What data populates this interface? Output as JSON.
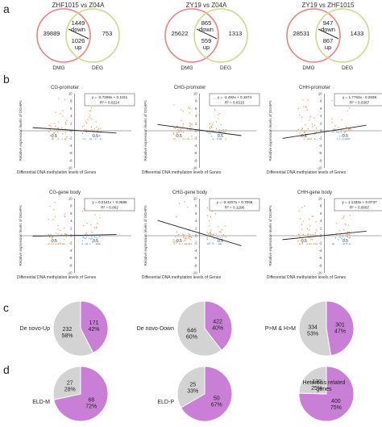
{
  "panels": {
    "a": "a",
    "b": "b",
    "c": "c",
    "d": "d"
  },
  "venn": [
    {
      "title": "ZHF1015 vs Z04A",
      "left_only": "39889",
      "overlap_down": "1449",
      "down_word": "down",
      "overlap_up": "1026",
      "up_word": "up",
      "right_only": "753",
      "left_label": "DMG",
      "right_label": "DEG"
    },
    {
      "title": "ZY19 vs Z04A",
      "left_only": "25622",
      "overlap_down": "865",
      "down_word": "down",
      "overlap_up": "559",
      "up_word": "up",
      "right_only": "1313",
      "left_label": "DMG",
      "right_label": "DEG"
    },
    {
      "title": "ZY19 vs ZHF1015",
      "left_only": "28531",
      "overlap_down": "947",
      "down_word": "down",
      "overlap_up": "867",
      "up_word": "up",
      "right_only": "1433",
      "left_label": "DMG",
      "right_label": "DEG"
    }
  ],
  "scatter": {
    "ylabel": "Relative expression levels of DGHPs",
    "xlabel": "Differential DNA methylation levels of Genes",
    "yticks": [
      "10",
      "9",
      "8",
      "7",
      "6",
      "5",
      "4",
      "3",
      "2",
      "1",
      "0",
      "-1",
      "-2",
      "-3",
      "-4",
      "-5",
      "-6",
      "-7",
      "-8",
      "-9",
      "-10"
    ],
    "xticks": [
      "-0.5",
      "0.5"
    ],
    "plots": [
      {
        "title": "CG-promoter",
        "equation": "y = -0.7269x + 0.1151",
        "r2": "R² = 0.0224",
        "slope": -0.7269,
        "intercept": 0.1151
      },
      {
        "title": "CHG-promoter",
        "equation": "y = -1.492x + 0.1874",
        "r2": "R² = 0.0315",
        "slope": -1.492,
        "intercept": 0.1874
      },
      {
        "title": "CHH-promoter",
        "equation": "y = 1.7763x - 0.2838",
        "r2": "R² = 0.0367",
        "slope": 1.7763,
        "intercept": -0.2838
      },
      {
        "title": "CG-gene body",
        "equation": "y = 0.2141x + 0.0886",
        "r2": "R² = 0.002",
        "slope": 0.2141,
        "intercept": 0.0886
      },
      {
        "title": "CHG-gene body",
        "equation": "y = -3.4207x + 0.7066",
        "r2": "R² = 0.1296",
        "slope": -3.4207,
        "intercept": 0.7066
      },
      {
        "title": "CHH-gene body",
        "equation": "y = 1.1333x + 0.0737",
        "r2": "R² = 0.0097",
        "slope": 1.1333,
        "intercept": 0.0737
      }
    ]
  },
  "chart_data": [
    {
      "type": "pie",
      "label": "De novo-Up",
      "values": [
        171,
        232
      ],
      "percent_labels": [
        "42%",
        "58%"
      ],
      "colors": [
        "#c97fd6",
        "#d3d3d3"
      ]
    },
    {
      "type": "pie",
      "label": "De novo-Down",
      "values": [
        422,
        646
      ],
      "percent_labels": [
        "40%",
        "60%"
      ],
      "colors": [
        "#c97fd6",
        "#d3d3d3"
      ]
    },
    {
      "type": "pie",
      "label": "P>M & H>M",
      "values": [
        301,
        334
      ],
      "percent_labels": [
        "47%",
        "53%"
      ],
      "colors": [
        "#c97fd6",
        "#d3d3d3"
      ]
    },
    {
      "type": "pie",
      "label": "ELD-M",
      "values": [
        68,
        27
      ],
      "percent_labels": [
        "72%",
        "28%"
      ],
      "colors": [
        "#c97fd6",
        "#d3d3d3"
      ]
    },
    {
      "type": "pie",
      "label": "ELD-P",
      "values": [
        50,
        25
      ],
      "percent_labels": [
        "67%",
        "33%"
      ],
      "colors": [
        "#c97fd6",
        "#d3d3d3"
      ]
    },
    {
      "type": "pie",
      "label": "Heterosis related genes",
      "values": [
        400,
        130
      ],
      "percent_labels": [
        "75%",
        "25%"
      ],
      "colors": [
        "#c97fd6",
        "#d3d3d3"
      ]
    }
  ],
  "colors": {
    "dmg_circle": "#f08080",
    "deg_circle": "#cfd98a",
    "up_points": "#f4a46a",
    "down_points": "#8ab4de",
    "pie_purple": "#c97fd6",
    "pie_grey": "#d3d3d3"
  }
}
